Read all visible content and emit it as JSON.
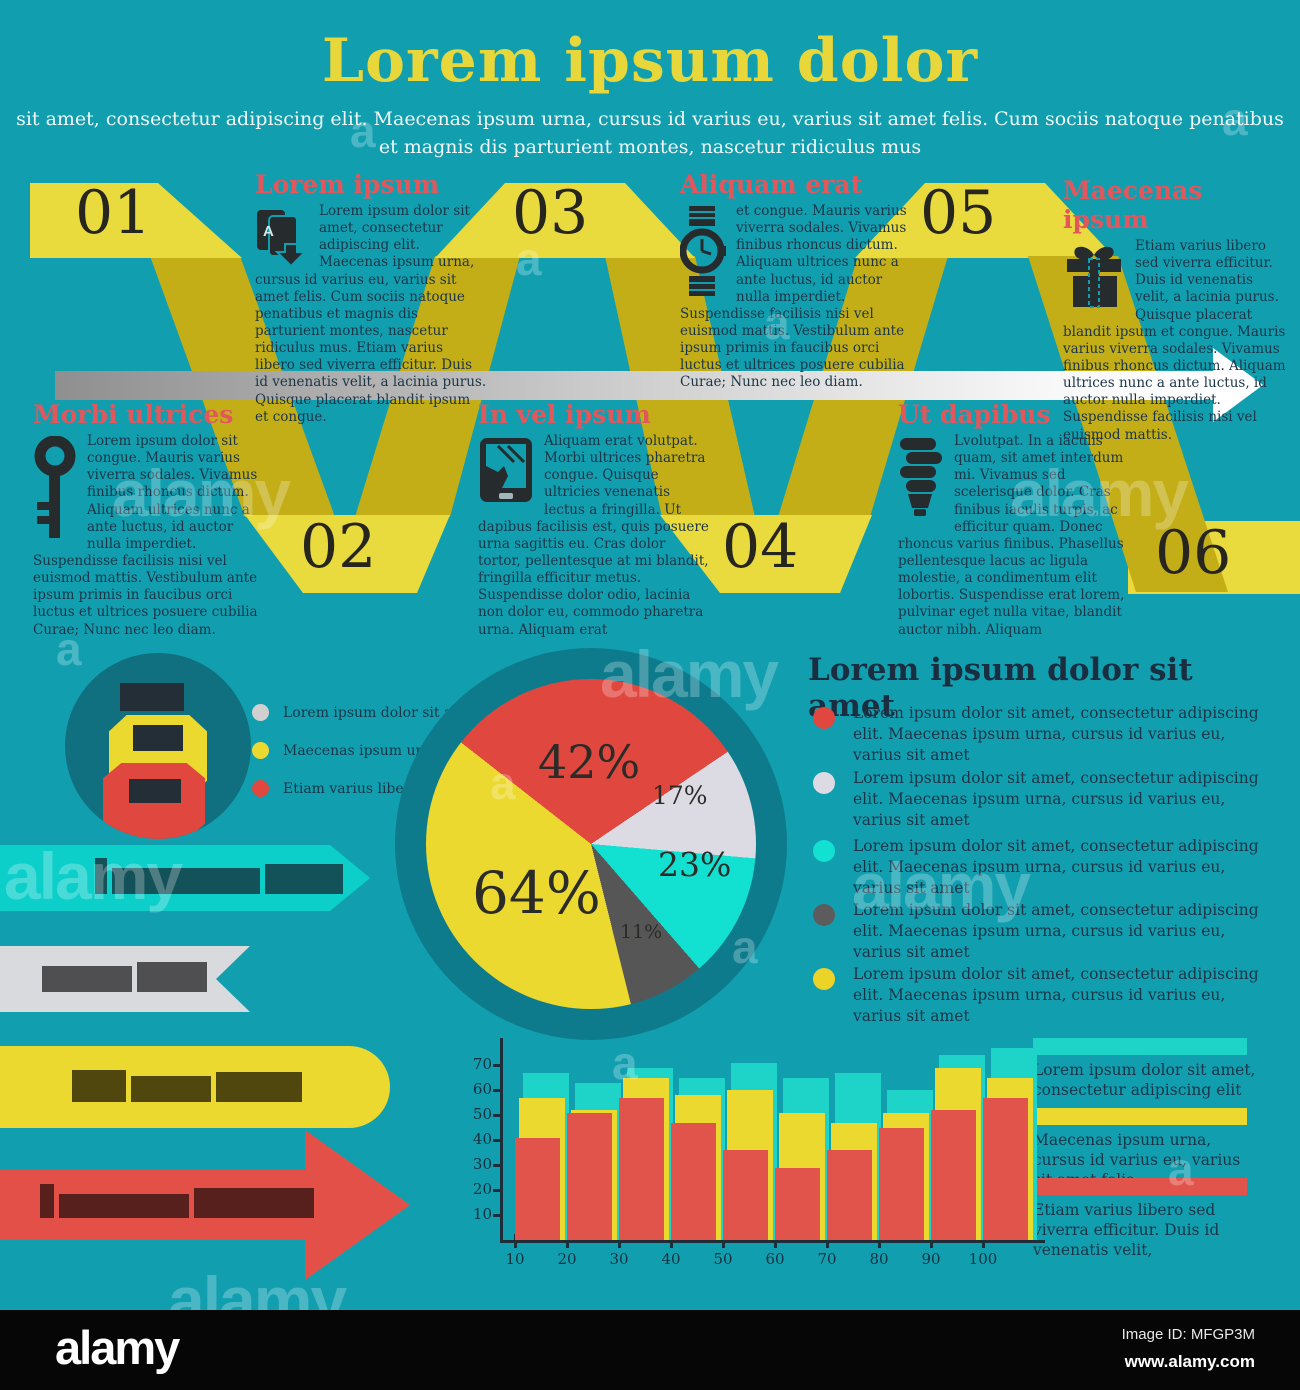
{
  "page": {
    "title": "Lorem ipsum dolor",
    "subtitle_line1": "sit amet, consectetur adipiscing elit. Maecenas ipsum urna, cursus id varius eu, varius sit amet felis. Cum sociis natoque penatibus",
    "subtitle_line2": "et magnis dis parturient montes, nascetur ridiculus mus"
  },
  "timeline": {
    "numbers": [
      "01",
      "02",
      "03",
      "04",
      "05",
      "06"
    ],
    "sections": [
      {
        "num": "01",
        "icon": "books-icon",
        "title": "Lorem ipsum",
        "text": "Lorem ipsum dolor sit amet, consectetur adipiscing elit. Maecenas ipsum urna, cursus id varius eu, varius sit amet felis. Cum sociis natoque penatibus et magnis dis parturient montes, nascetur ridiculus mus. Etiam varius libero sed viverra efficitur. Duis id venenatis velit, a lacinia purus. Quisque placerat blandit ipsum et congue."
      },
      {
        "num": "03",
        "icon": "watch-icon",
        "title": "Aliquam erat",
        "text": "et congue. Mauris varius viverra sodales. Vivamus finibus rhoncus dictum. Aliquam ultrices nunc a ante luctus, id auctor nulla imperdiet. Suspendisse facilisis nisi vel euismod mattis. Vestibulum ante ipsum primis in faucibus orci luctus et ultrices posuere cubilia Curae; Nunc nec leo diam."
      },
      {
        "num": "05",
        "icon": "gift-icon",
        "title": "Maecenas ipsum",
        "text": "Etiam varius libero sed viverra efficitur. Duis id venenatis velit, a lacinia purus. Quisque placerat blandit ipsum et congue. Mauris varius viverra sodales. Vivamus finibus rhoncus dictum. Aliquam ultrices nunc a ante luctus, id auctor nulla imperdiet. Suspendisse facilisis nisi vel euismod mattis."
      },
      {
        "num": "02",
        "icon": "key-icon",
        "title": "Morbi ultrices",
        "text": "Lorem ipsum dolor sit congue. Mauris varius viverra sodales. Vivamus finibus rhoncus dictum. Aliquam ultrices nunc a ante luctus, id auctor nulla imperdiet. Suspendisse facilisis nisi vel euismod mattis. Vestibulum ante ipsum primis in faucibus orci luctus et ultrices posuere cubilia Curae; Nunc nec leo diam."
      },
      {
        "num": "04",
        "icon": "tablet-icon",
        "title": "In vel ipsum",
        "text": "Aliquam erat volutpat. Morbi ultrices pharetra congue. Quisque ultricies venenatis lectus a fringilla. Ut dapibus facilisis est, quis posuere urna sagittis eu. Cras dolor tortor, pellentesque at mi blandit, fringilla efficitur metus. Suspendisse dolor odio, lacinia non dolor eu, commodo pharetra urna. Aliquam erat"
      },
      {
        "num": "06",
        "icon": "bulb-icon",
        "title": "Ut dapibus",
        "text": "Lvolutpat. In a iaculis quam, sit amet interdum mi. Vivamus sed scelerisque dolor. Cras finibus iaculis turpis, ac efficitur quam. Donec rhoncus varius finibus. Phasellus pellentesque lacus ac ligula molestie, a condimentum elit lobortis. Suspendisse erat lorem, pulvinar eget nulla vitae, blandit auctor nibh. Aliquam"
      }
    ]
  },
  "mini_legend": {
    "items": [
      {
        "color": "#d2cfd0",
        "label": "Lorem ipsum dolor sit amet"
      },
      {
        "color": "#ecd92f",
        "label": "Maecenas ipsum urna"
      },
      {
        "color": "#e0473f",
        "label": "Etiam varius libero sed"
      }
    ]
  },
  "right_panel": {
    "title": "Lorem ipsum dolor sit amet",
    "bullets": [
      {
        "color": "#e0473f",
        "text": "Lorem ipsum dolor sit amet, consectetur adipiscing elit. Maecenas ipsum urna, cursus id varius eu, varius sit amet"
      },
      {
        "color": "#dcdbe3",
        "text": "Lorem ipsum dolor sit amet, consectetur adipiscing elit. Maecenas ipsum urna, cursus id varius eu, varius sit amet"
      },
      {
        "color": "#12e0d0",
        "text": "Lorem ipsum dolor sit amet, consectetur adipiscing elit. Maecenas ipsum urna, cursus id varius eu, varius sit amet"
      },
      {
        "color": "#5c5c5c",
        "text": "Lorem ipsum dolor sit amet, consectetur adipiscing elit. Maecenas ipsum urna, cursus id varius eu, varius sit amet"
      },
      {
        "color": "#ecd327",
        "text": "Lorem ipsum dolor sit amet, consectetur adipiscing elit. Maecenas ipsum urna, cursus id varius eu, varius sit amet"
      }
    ]
  },
  "banners": {
    "cyan_arrow_color": "#0ccfca",
    "gray_flag_color": "#d9dade",
    "yellow_pill_color": "#ecd92f",
    "red_arrow_color": "#e25048"
  },
  "bottom_legend": {
    "items": [
      {
        "color": "#1ed4c8",
        "text": "Lorem ipsum dolor sit amet, consectetur adipiscing elit"
      },
      {
        "color": "#ecd92f",
        "text": "Maecenas ipsum urna, cursus id varius eu, varius sit amet felis"
      },
      {
        "color": "#e0544b",
        "text": "Etiam varius libero sed viverra efficitur. Duis id venenatis velit,"
      }
    ]
  },
  "chart_data": [
    {
      "type": "pie",
      "title": "",
      "slices": [
        {
          "label": "42%",
          "value": 42,
          "color": "#e0473f",
          "start": -52,
          "end": 56
        },
        {
          "label": "17%",
          "value": 17,
          "color": "#dcdbe3",
          "start": 56,
          "end": 95
        },
        {
          "label": "23%",
          "value": 23,
          "color": "#12e0d0",
          "start": 95,
          "end": 139
        },
        {
          "label": "11%",
          "value": 11,
          "color": "#565656",
          "start": 139,
          "end": 166
        },
        {
          "label": "64%",
          "value": 64,
          "color": "#ecd92f",
          "start": 166,
          "end": 308
        }
      ],
      "legend_position": "none",
      "ring_color": "#0d7b8c"
    },
    {
      "type": "bar",
      "x": [
        10,
        20,
        30,
        40,
        50,
        60,
        70,
        80,
        90,
        100
      ],
      "series": [
        {
          "name": "cyan",
          "color": "#1ed4c8",
          "values": [
            67,
            63,
            69,
            65,
            71,
            65,
            67,
            60,
            74,
            77
          ]
        },
        {
          "name": "yellow",
          "color": "#ecd92f",
          "values": [
            57,
            52,
            65,
            58,
            60,
            51,
            47,
            51,
            69,
            65
          ]
        },
        {
          "name": "red",
          "color": "#e0544b",
          "values": [
            41,
            51,
            57,
            47,
            36,
            29,
            36,
            45,
            52,
            57
          ]
        }
      ],
      "yticks": [
        10,
        20,
        30,
        40,
        50,
        60,
        70
      ],
      "ylim": [
        0,
        80
      ],
      "grid": false,
      "legend_position": "right"
    }
  ],
  "watermark": {
    "brand": "alamy",
    "letter": "a"
  },
  "footer": {
    "logo": "alamy",
    "image_id": "Image ID: MFGP3M",
    "url": "www.alamy.com"
  },
  "colors": {
    "background": "#119fb0",
    "ribbon_bright": "#e9da3e",
    "ribbon_dark": "#c3ae17",
    "heading_red": "#e2575c",
    "body_text": "#1c3547",
    "title_yellow": "#e8d73a"
  }
}
